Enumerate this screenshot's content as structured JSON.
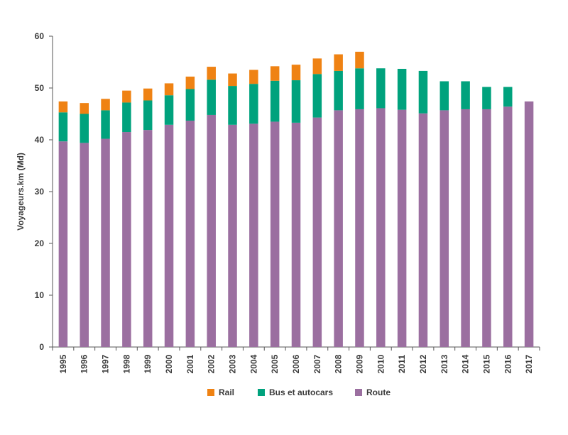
{
  "chart_data": {
    "type": "bar",
    "stacked": true,
    "title": "",
    "xlabel": "",
    "ylabel": "Voyageurs.km (Md)",
    "ylim": [
      0,
      60
    ],
    "yticks": [
      0,
      10,
      20,
      30,
      40,
      50,
      60
    ],
    "grid": false,
    "legend_position": "bottom",
    "categories": [
      "1995",
      "1996",
      "1997",
      "1998",
      "1999",
      "2000",
      "2001",
      "2002",
      "2003",
      "2004",
      "2005",
      "2006",
      "2007",
      "2008",
      "2009",
      "2010",
      "2011",
      "2012",
      "2013",
      "2014",
      "2015",
      "2016",
      "2017"
    ],
    "series": [
      {
        "name": "Route",
        "color": "#9b6fa0",
        "values": [
          39.7,
          39.4,
          40.2,
          41.5,
          41.9,
          42.9,
          43.7,
          44.8,
          42.9,
          43.1,
          43.5,
          43.3,
          44.3,
          45.7,
          45.9,
          46.1,
          45.8,
          45.1,
          45.7,
          45.9,
          45.9,
          46.4,
          47.4
        ]
      },
      {
        "name": "Bus et autocars",
        "color": "#00a27d",
        "values": [
          5.6,
          5.6,
          5.5,
          5.7,
          5.7,
          5.7,
          6.1,
          6.8,
          7.5,
          7.7,
          7.9,
          8.2,
          8.4,
          7.6,
          7.9,
          7.7,
          7.9,
          8.2,
          5.6,
          5.4,
          4.3,
          3.8,
          0
        ]
      },
      {
        "name": "Rail",
        "color": "#ef8213",
        "values": [
          2.1,
          2.1,
          2.2,
          2.3,
          2.3,
          2.3,
          2.4,
          2.5,
          2.4,
          2.7,
          2.8,
          3.0,
          3.0,
          3.2,
          3.2,
          0,
          0,
          0,
          0,
          0,
          0,
          0,
          0
        ]
      }
    ],
    "legend": [
      {
        "name": "Rail",
        "color": "#ef8213"
      },
      {
        "name": "Bus et autocars",
        "color": "#00a27d"
      },
      {
        "name": "Route",
        "color": "#9b6fa0"
      }
    ]
  }
}
